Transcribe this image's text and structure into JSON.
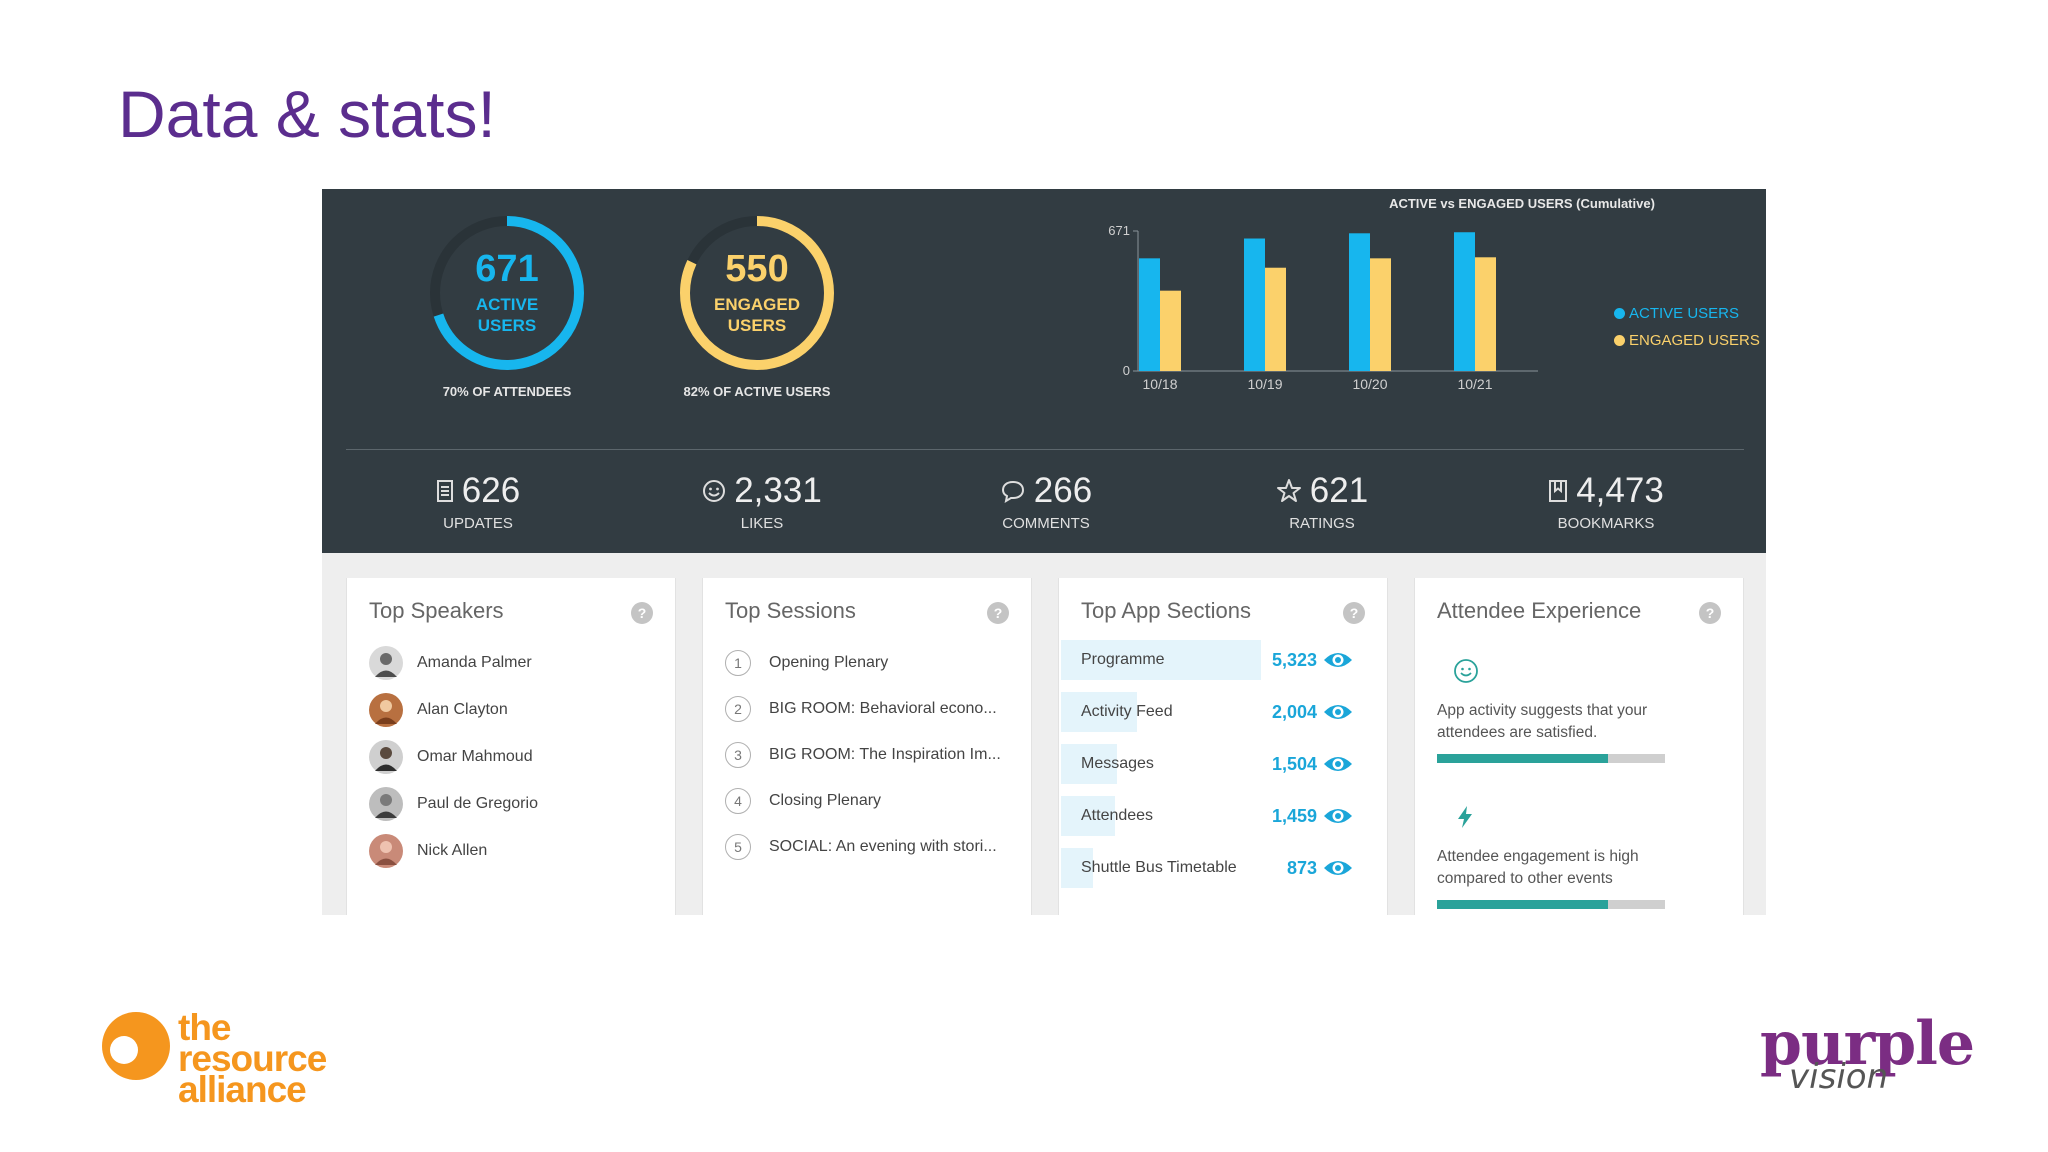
{
  "slide": {
    "title": "Data & stats!"
  },
  "colors": {
    "active": "#17b6ee",
    "engaged": "#fbd16b",
    "dark_bg": "#323c42",
    "accent_purple": "#5b2d8e",
    "teal": "#2aa29a"
  },
  "rings": [
    {
      "value": "671",
      "label_line1": "ACTIVE",
      "label_line2": "USERS",
      "sub": "70% OF ATTENDEES",
      "fraction": 0.7,
      "color": "#17b6ee"
    },
    {
      "value": "550",
      "label_line1": "ENGAGED",
      "label_line2": "USERS",
      "sub": "82% OF ACTIVE USERS",
      "fraction": 0.82,
      "color": "#fbd16b"
    }
  ],
  "chart_data": {
    "type": "bar",
    "title": "ACTIVE vs ENGAGED USERS (Cumulative)",
    "categories": [
      "10/18",
      "10/19",
      "10/20",
      "10/21"
    ],
    "series": [
      {
        "name": "ACTIVE USERS",
        "values": [
          540,
          635,
          660,
          665
        ],
        "color": "#17b6ee"
      },
      {
        "name": "ENGAGED USERS",
        "values": [
          385,
          495,
          540,
          545
        ],
        "color": "#fbd16b"
      }
    ],
    "yticks": [
      "671",
      "0"
    ],
    "ylim": [
      0,
      671
    ],
    "legend": "right"
  },
  "stats": [
    {
      "icon": "document-icon",
      "value": "626",
      "label": "UPDATES"
    },
    {
      "icon": "smiley-icon",
      "value": "2,331",
      "label": "LIKES"
    },
    {
      "icon": "comment-icon",
      "value": "266",
      "label": "COMMENTS"
    },
    {
      "icon": "star-icon",
      "value": "621",
      "label": "RATINGS"
    },
    {
      "icon": "bookmark-icon",
      "value": "4,473",
      "label": "BOOKMARKS"
    }
  ],
  "top_speakers": {
    "title": "Top Speakers",
    "items": [
      "Amanda Palmer",
      "Alan Clayton",
      "Omar Mahmoud",
      "Paul de Gregorio",
      "Nick Allen"
    ]
  },
  "top_sessions": {
    "title": "Top Sessions",
    "items": [
      {
        "num": "1",
        "name": "Opening Plenary"
      },
      {
        "num": "2",
        "name": "BIG ROOM: Behavioral econo..."
      },
      {
        "num": "3",
        "name": "BIG ROOM: The Inspiration Im..."
      },
      {
        "num": "4",
        "name": "Closing Plenary"
      },
      {
        "num": "5",
        "name": "SOCIAL: An evening with stori..."
      }
    ]
  },
  "top_app_sections": {
    "title": "Top App Sections",
    "items": [
      {
        "name": "Programme",
        "count": "5,323",
        "share": 1.0
      },
      {
        "name": "Activity Feed",
        "count": "2,004",
        "share": 0.38
      },
      {
        "name": "Messages",
        "count": "1,504",
        "share": 0.28
      },
      {
        "name": "Attendees",
        "count": "1,459",
        "share": 0.27
      },
      {
        "name": "Shuttle Bus Timetable",
        "count": "873",
        "share": 0.16
      }
    ]
  },
  "attendee_experience": {
    "title": "Attendee Experience",
    "items": [
      {
        "icon": "smiley-icon",
        "text": "App activity suggests that your attendees are satisfied.",
        "level": 0.75
      },
      {
        "icon": "lightning-icon",
        "text": "Attendee engagement is high compared to other events",
        "level": 0.75
      }
    ]
  },
  "logos": {
    "resource_alliance": {
      "line1": "the",
      "line2": "resource",
      "line3": "alliance"
    },
    "purple_vision": {
      "main": "purple",
      "sub": "vision"
    }
  }
}
